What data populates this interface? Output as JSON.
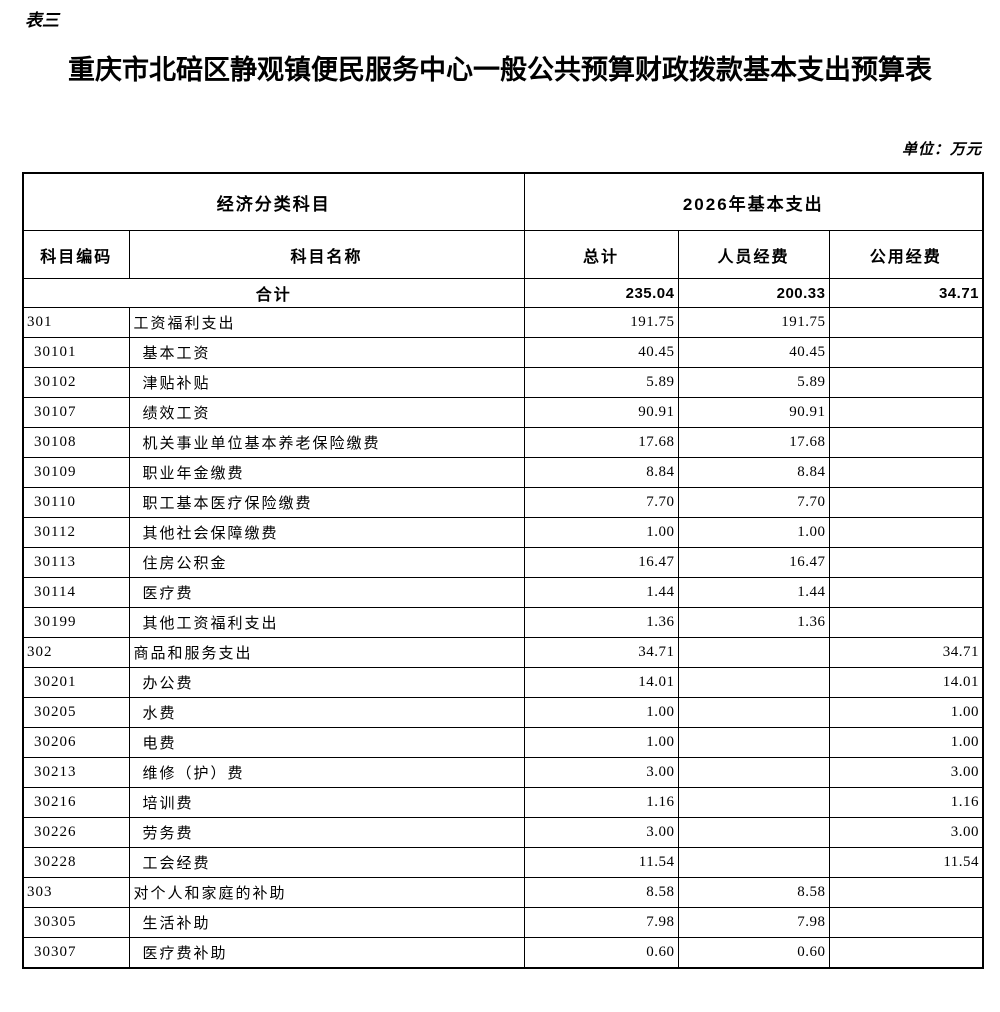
{
  "page": {
    "table_label": "表三",
    "title": "重庆市北碚区静观镇便民服务中心一般公共预算财政拨款基本支出预算表",
    "unit_note": "单位：万元"
  },
  "table": {
    "header": {
      "group_left": "经济分类科目",
      "group_right": "2026年基本支出",
      "columns": [
        "科目编码",
        "科目名称",
        "总计",
        "人员经费",
        "公用经费"
      ]
    },
    "total_row": {
      "label": "合计",
      "total": "235.04",
      "personnel": "200.33",
      "public": "34.71"
    },
    "rows": [
      {
        "code": "301",
        "name": "工资福利支出",
        "total": "191.75",
        "personnel": "191.75",
        "public": "",
        "level": "top"
      },
      {
        "code": "30101",
        "name": "基本工资",
        "total": "40.45",
        "personnel": "40.45",
        "public": "",
        "level": "sub"
      },
      {
        "code": "30102",
        "name": "津贴补贴",
        "total": "5.89",
        "personnel": "5.89",
        "public": "",
        "level": "sub"
      },
      {
        "code": "30107",
        "name": "绩效工资",
        "total": "90.91",
        "personnel": "90.91",
        "public": "",
        "level": "sub"
      },
      {
        "code": "30108",
        "name": "机关事业单位基本养老保险缴费",
        "total": "17.68",
        "personnel": "17.68",
        "public": "",
        "level": "sub"
      },
      {
        "code": "30109",
        "name": "职业年金缴费",
        "total": "8.84",
        "personnel": "8.84",
        "public": "",
        "level": "sub"
      },
      {
        "code": "30110",
        "name": "职工基本医疗保险缴费",
        "total": "7.70",
        "personnel": "7.70",
        "public": "",
        "level": "sub"
      },
      {
        "code": "30112",
        "name": "其他社会保障缴费",
        "total": "1.00",
        "personnel": "1.00",
        "public": "",
        "level": "sub"
      },
      {
        "code": "30113",
        "name": "住房公积金",
        "total": "16.47",
        "personnel": "16.47",
        "public": "",
        "level": "sub"
      },
      {
        "code": "30114",
        "name": "医疗费",
        "total": "1.44",
        "personnel": "1.44",
        "public": "",
        "level": "sub"
      },
      {
        "code": "30199",
        "name": "其他工资福利支出",
        "total": "1.36",
        "personnel": "1.36",
        "public": "",
        "level": "sub"
      },
      {
        "code": "302",
        "name": "商品和服务支出",
        "total": "34.71",
        "personnel": "",
        "public": "34.71",
        "level": "top"
      },
      {
        "code": "30201",
        "name": "办公费",
        "total": "14.01",
        "personnel": "",
        "public": "14.01",
        "level": "sub"
      },
      {
        "code": "30205",
        "name": "水费",
        "total": "1.00",
        "personnel": "",
        "public": "1.00",
        "level": "sub"
      },
      {
        "code": "30206",
        "name": "电费",
        "total": "1.00",
        "personnel": "",
        "public": "1.00",
        "level": "sub"
      },
      {
        "code": "30213",
        "name": "维修（护）费",
        "total": "3.00",
        "personnel": "",
        "public": "3.00",
        "level": "sub"
      },
      {
        "code": "30216",
        "name": "培训费",
        "total": "1.16",
        "personnel": "",
        "public": "1.16",
        "level": "sub"
      },
      {
        "code": "30226",
        "name": "劳务费",
        "total": "3.00",
        "personnel": "",
        "public": "3.00",
        "level": "sub"
      },
      {
        "code": "30228",
        "name": "工会经费",
        "total": "11.54",
        "personnel": "",
        "public": "11.54",
        "level": "sub"
      },
      {
        "code": "303",
        "name": "对个人和家庭的补助",
        "total": "8.58",
        "personnel": "8.58",
        "public": "",
        "level": "top"
      },
      {
        "code": "30305",
        "name": "生活补助",
        "total": "7.98",
        "personnel": "7.98",
        "public": "",
        "level": "sub"
      },
      {
        "code": "30307",
        "name": "医疗费补助",
        "total": "0.60",
        "personnel": "0.60",
        "public": "",
        "level": "sub"
      }
    ]
  }
}
